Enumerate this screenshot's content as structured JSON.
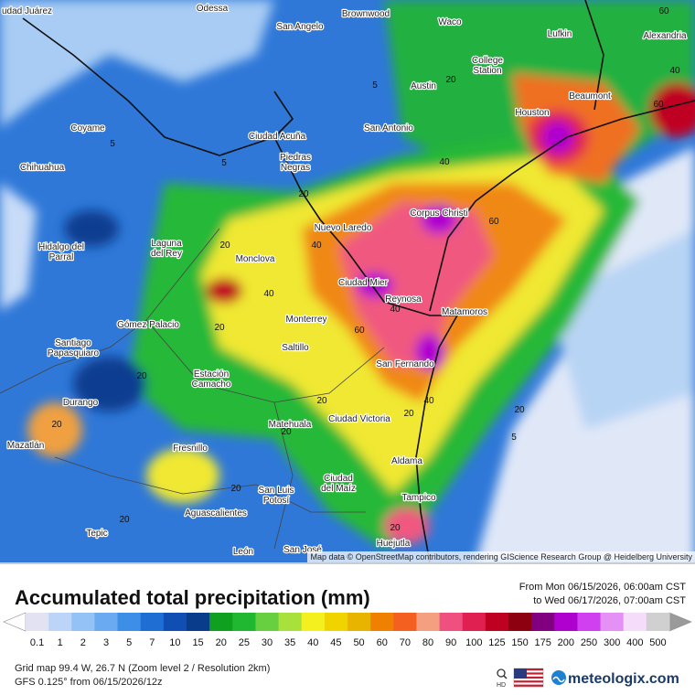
{
  "map": {
    "cities": [
      [
        "udad Juárez"
      ],
      [
        "Odessa"
      ],
      [
        "Brownwood"
      ],
      [
        "Waco"
      ],
      [
        "San Angelo"
      ],
      [
        "Lufkin"
      ],
      [
        "Alexandria"
      ],
      [
        "College",
        "Station"
      ],
      [
        "Austin"
      ],
      [
        "Beaumont"
      ],
      [
        "Houston"
      ],
      [
        "Coyame"
      ],
      [
        "San Antonio"
      ],
      [
        "Ciudad Acuña"
      ],
      [
        "Piedras",
        "Negras"
      ],
      [
        "Chihuahua"
      ],
      [
        "Corpus Christi"
      ],
      [
        "Nuevo Laredo"
      ],
      [
        "Laguna",
        "del Rey"
      ],
      [
        "Hidalgo del",
        "Parral"
      ],
      [
        "Monclova"
      ],
      [
        "Ciudad Mier"
      ],
      [
        "Reynosa"
      ],
      [
        "Matamoros"
      ],
      [
        "Gómez Palacio"
      ],
      [
        "Monterrey"
      ],
      [
        "Saltillo"
      ],
      [
        "Santiago",
        "Papasquiaro"
      ],
      [
        "San Fernando"
      ],
      [
        "Estación",
        "Camacho"
      ],
      [
        "Durango"
      ],
      [
        "Ciudad Victoria"
      ],
      [
        "Matehuala"
      ],
      [
        "Mazatlán"
      ],
      [
        "Fresnillo"
      ],
      [
        "Aldama"
      ],
      [
        "Ciudad",
        "del Maíz"
      ],
      [
        "San Luis",
        "Potosí"
      ],
      [
        "Tampico"
      ],
      [
        "Aguascalientes"
      ],
      [
        "Tepic"
      ],
      [
        "Huejutla"
      ],
      [
        "León"
      ],
      [
        "San José"
      ]
    ],
    "contour_labels": [
      "60",
      "40",
      "60",
      "20",
      "5",
      "5",
      "40",
      "5",
      "20",
      "40",
      "60",
      "20",
      "40",
      "40",
      "20",
      "20",
      "60",
      "40",
      "20",
      "20",
      "5",
      "20",
      "20",
      "20",
      "20",
      "20",
      "20"
    ],
    "attribution": "Map data © OpenStreetMap contributors, rendering GIScience Research Group @ Heidelberg University"
  },
  "legend": {
    "title": "Accumulated total precipitation (mm)",
    "period_from": "From Mon 06/15/2026, 06:00am CST",
    "period_to": "to Wed 06/17/2026, 07:00am CST",
    "scale": [
      {
        "label": "0.1",
        "color": "#e2e2f2"
      },
      {
        "label": "1",
        "color": "#bcd4f8"
      },
      {
        "label": "2",
        "color": "#94c2f6"
      },
      {
        "label": "3",
        "color": "#6aaaf0"
      },
      {
        "label": "5",
        "color": "#3c8ee6"
      },
      {
        "label": "7",
        "color": "#1e6ed4"
      },
      {
        "label": "10",
        "color": "#104eb4"
      },
      {
        "label": "15",
        "color": "#0a3c8c"
      },
      {
        "label": "20",
        "color": "#10a020"
      },
      {
        "label": "25",
        "color": "#20b830"
      },
      {
        "label": "30",
        "color": "#66d040"
      },
      {
        "label": "35",
        "color": "#a8e03c"
      },
      {
        "label": "40",
        "color": "#f4f020"
      },
      {
        "label": "45",
        "color": "#f0d400"
      },
      {
        "label": "50",
        "color": "#e8b400"
      },
      {
        "label": "60",
        "color": "#f08000"
      },
      {
        "label": "70",
        "color": "#f46020"
      },
      {
        "label": "80",
        "color": "#f4a080"
      },
      {
        "label": "90",
        "color": "#f05080"
      },
      {
        "label": "100",
        "color": "#e02050"
      },
      {
        "label": "125",
        "color": "#c00020"
      },
      {
        "label": "150",
        "color": "#8c0010"
      },
      {
        "label": "175",
        "color": "#800080"
      },
      {
        "label": "200",
        "color": "#b000d0"
      },
      {
        "label": "250",
        "color": "#d040f0"
      },
      {
        "label": "300",
        "color": "#e490f4"
      },
      {
        "label": "400",
        "color": "#f4dcfa"
      },
      {
        "label": "500",
        "color": "#d0d0d0"
      }
    ]
  },
  "footer": {
    "grid_info": "Grid map 99.4 W, 26.7 N (Zoom level 2 / Resolution 2km)",
    "model_info": "GFS 0.125° from  06/15/2026/12z",
    "hd": "HD",
    "logo": "meteologix.com"
  }
}
